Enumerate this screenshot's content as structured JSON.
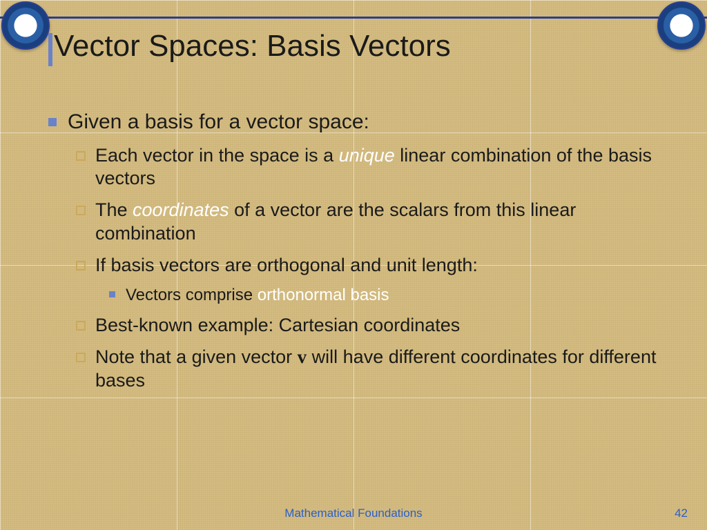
{
  "title": "Vector Spaces: Basis Vectors",
  "bullets": {
    "b1": "Given a basis for a vector space:",
    "b2a": "Each vector in the space is a ",
    "b2_hl": "unique",
    "b2b": " linear combination of the basis vectors",
    "b3a": "The ",
    "b3_hl": "coordinates",
    "b3b": " of a vector are the scalars from this linear combination",
    "b4": "If basis vectors are orthogonal and unit length:",
    "b5a": "Vectors comprise ",
    "b5_hl": "orthonormal basis",
    "b6": "Best-known example: Cartesian coordinates",
    "b7a": "Note that a given vector ",
    "b7_v": "v",
    "b7b": " will have different coordinates for different bases"
  },
  "footer": "Mathematical Foundations",
  "page": "42",
  "colors": {
    "accent": "#6a82c9",
    "highlight": "#ffffff",
    "footer": "#2a5fc9",
    "bg": "#d9c28a"
  },
  "fonts": {
    "title_size": 44,
    "lvl1_size": 30,
    "lvl2_size": 27,
    "lvl3_size": 24,
    "footer_size": 17
  }
}
